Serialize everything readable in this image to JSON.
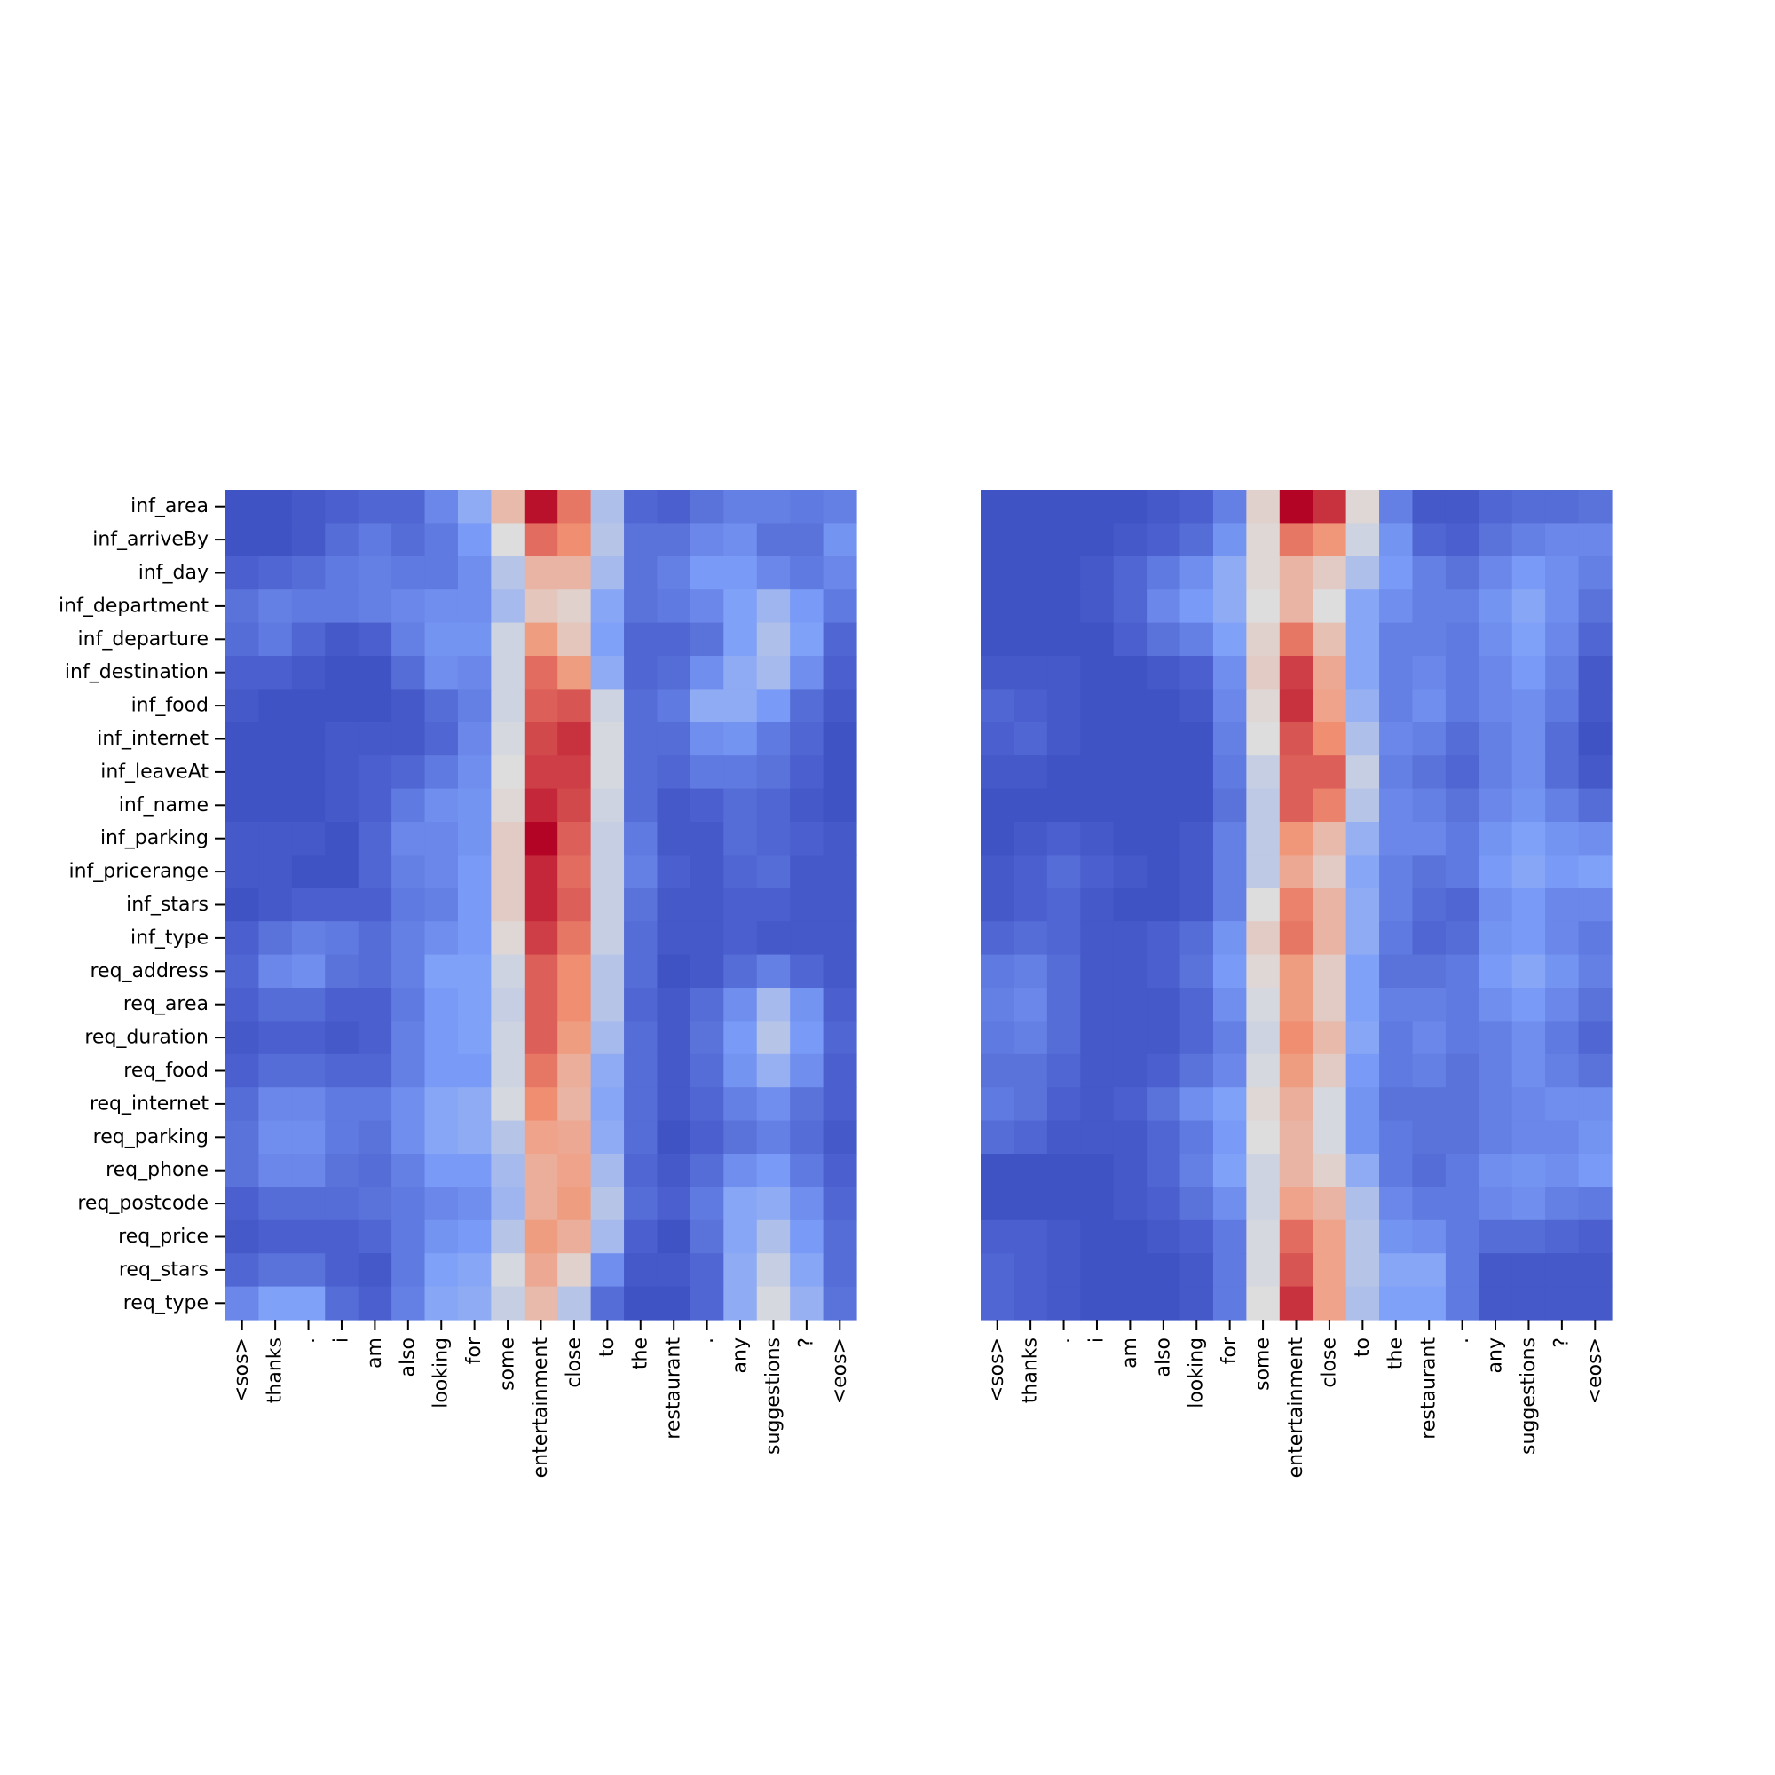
{
  "chart_data": [
    {
      "type": "heatmap",
      "title": "",
      "xlabel": "",
      "ylabel": "",
      "colormap": "coolwarm",
      "value_range": [
        0,
        1
      ],
      "x": [
        "<sos>",
        "thanks",
        ".",
        "i",
        "am",
        "also",
        "looking",
        "for",
        "some",
        "entertainment",
        "close",
        "to",
        "the",
        "restaurant",
        ".",
        "any",
        "suggestions",
        "?",
        "<eos>"
      ],
      "y": [
        "inf_area",
        "inf_arriveBy",
        "inf_day",
        "inf_department",
        "inf_departure",
        "inf_destination",
        "inf_food",
        "inf_internet",
        "inf_leaveAt",
        "inf_name",
        "inf_parking",
        "inf_pricerange",
        "inf_stars",
        "inf_type",
        "req_address",
        "req_area",
        "req_duration",
        "req_food",
        "req_internet",
        "req_parking",
        "req_phone",
        "req_postcode",
        "req_price",
        "req_stars",
        "req_type"
      ],
      "values": [
        [
          0.02,
          0.02,
          0.04,
          0.06,
          0.08,
          0.08,
          0.18,
          0.3,
          0.62,
          0.98,
          0.8,
          0.38,
          0.08,
          0.06,
          0.12,
          0.16,
          0.16,
          0.14,
          0.16
        ],
        [
          0.02,
          0.02,
          0.04,
          0.1,
          0.14,
          0.1,
          0.14,
          0.24,
          0.5,
          0.82,
          0.76,
          0.4,
          0.12,
          0.12,
          0.18,
          0.2,
          0.12,
          0.12,
          0.22
        ],
        [
          0.06,
          0.08,
          0.1,
          0.14,
          0.16,
          0.14,
          0.14,
          0.2,
          0.4,
          0.64,
          0.64,
          0.36,
          0.12,
          0.16,
          0.24,
          0.24,
          0.18,
          0.14,
          0.18
        ],
        [
          0.12,
          0.16,
          0.14,
          0.14,
          0.16,
          0.18,
          0.2,
          0.2,
          0.36,
          0.58,
          0.54,
          0.28,
          0.12,
          0.14,
          0.18,
          0.26,
          0.34,
          0.24,
          0.14
        ],
        [
          0.1,
          0.14,
          0.08,
          0.04,
          0.06,
          0.16,
          0.22,
          0.22,
          0.46,
          0.72,
          0.58,
          0.26,
          0.08,
          0.08,
          0.12,
          0.26,
          0.38,
          0.26,
          0.08
        ],
        [
          0.06,
          0.06,
          0.04,
          0.02,
          0.02,
          0.1,
          0.2,
          0.18,
          0.46,
          0.82,
          0.72,
          0.3,
          0.08,
          0.1,
          0.2,
          0.3,
          0.36,
          0.2,
          0.06
        ],
        [
          0.04,
          0.02,
          0.02,
          0.02,
          0.02,
          0.04,
          0.1,
          0.16,
          0.46,
          0.84,
          0.86,
          0.46,
          0.1,
          0.14,
          0.3,
          0.3,
          0.24,
          0.1,
          0.04
        ],
        [
          0.02,
          0.02,
          0.02,
          0.04,
          0.04,
          0.04,
          0.08,
          0.18,
          0.48,
          0.88,
          0.92,
          0.48,
          0.1,
          0.1,
          0.2,
          0.22,
          0.14,
          0.08,
          0.02
        ],
        [
          0.02,
          0.02,
          0.02,
          0.04,
          0.06,
          0.08,
          0.14,
          0.2,
          0.5,
          0.9,
          0.9,
          0.48,
          0.1,
          0.08,
          0.14,
          0.14,
          0.12,
          0.06,
          0.02
        ],
        [
          0.02,
          0.02,
          0.02,
          0.04,
          0.06,
          0.14,
          0.2,
          0.22,
          0.52,
          0.94,
          0.88,
          0.46,
          0.1,
          0.04,
          0.06,
          0.1,
          0.08,
          0.04,
          0.02
        ],
        [
          0.04,
          0.04,
          0.04,
          0.02,
          0.08,
          0.18,
          0.18,
          0.22,
          0.56,
          1.0,
          0.84,
          0.44,
          0.14,
          0.04,
          0.04,
          0.1,
          0.08,
          0.06,
          0.04
        ],
        [
          0.04,
          0.04,
          0.02,
          0.02,
          0.08,
          0.16,
          0.18,
          0.24,
          0.56,
          0.94,
          0.82,
          0.44,
          0.16,
          0.06,
          0.04,
          0.08,
          0.1,
          0.04,
          0.04
        ],
        [
          0.02,
          0.04,
          0.06,
          0.06,
          0.06,
          0.14,
          0.16,
          0.24,
          0.56,
          0.94,
          0.84,
          0.44,
          0.12,
          0.04,
          0.04,
          0.06,
          0.06,
          0.04,
          0.04
        ],
        [
          0.06,
          0.12,
          0.16,
          0.14,
          0.1,
          0.16,
          0.2,
          0.24,
          0.52,
          0.9,
          0.8,
          0.44,
          0.1,
          0.04,
          0.04,
          0.06,
          0.04,
          0.04,
          0.04
        ],
        [
          0.08,
          0.18,
          0.2,
          0.12,
          0.1,
          0.16,
          0.26,
          0.26,
          0.46,
          0.84,
          0.76,
          0.4,
          0.1,
          0.02,
          0.04,
          0.1,
          0.16,
          0.08,
          0.04
        ],
        [
          0.06,
          0.1,
          0.1,
          0.06,
          0.06,
          0.14,
          0.24,
          0.26,
          0.44,
          0.84,
          0.76,
          0.4,
          0.08,
          0.04,
          0.1,
          0.2,
          0.36,
          0.22,
          0.06
        ],
        [
          0.04,
          0.06,
          0.06,
          0.04,
          0.06,
          0.16,
          0.24,
          0.26,
          0.46,
          0.84,
          0.72,
          0.36,
          0.1,
          0.04,
          0.12,
          0.24,
          0.4,
          0.24,
          0.08
        ],
        [
          0.06,
          0.1,
          0.1,
          0.08,
          0.08,
          0.16,
          0.24,
          0.24,
          0.46,
          0.8,
          0.66,
          0.3,
          0.1,
          0.04,
          0.1,
          0.22,
          0.32,
          0.2,
          0.06
        ],
        [
          0.1,
          0.18,
          0.18,
          0.14,
          0.14,
          0.2,
          0.28,
          0.3,
          0.48,
          0.76,
          0.64,
          0.28,
          0.1,
          0.04,
          0.08,
          0.16,
          0.2,
          0.12,
          0.06
        ],
        [
          0.12,
          0.2,
          0.2,
          0.14,
          0.12,
          0.2,
          0.28,
          0.3,
          0.4,
          0.7,
          0.68,
          0.3,
          0.1,
          0.02,
          0.06,
          0.12,
          0.16,
          0.1,
          0.04
        ],
        [
          0.12,
          0.18,
          0.18,
          0.12,
          0.1,
          0.16,
          0.24,
          0.24,
          0.36,
          0.66,
          0.7,
          0.36,
          0.08,
          0.04,
          0.1,
          0.2,
          0.24,
          0.14,
          0.06
        ],
        [
          0.06,
          0.1,
          0.1,
          0.1,
          0.12,
          0.14,
          0.18,
          0.2,
          0.34,
          0.66,
          0.72,
          0.4,
          0.1,
          0.06,
          0.14,
          0.28,
          0.3,
          0.2,
          0.08
        ],
        [
          0.04,
          0.06,
          0.06,
          0.06,
          0.08,
          0.14,
          0.22,
          0.24,
          0.4,
          0.72,
          0.66,
          0.36,
          0.06,
          0.02,
          0.12,
          0.28,
          0.38,
          0.24,
          0.1
        ],
        [
          0.08,
          0.12,
          0.12,
          0.06,
          0.04,
          0.14,
          0.26,
          0.28,
          0.48,
          0.68,
          0.54,
          0.2,
          0.04,
          0.04,
          0.08,
          0.3,
          0.44,
          0.28,
          0.1
        ],
        [
          0.18,
          0.26,
          0.26,
          0.1,
          0.06,
          0.16,
          0.28,
          0.3,
          0.44,
          0.62,
          0.4,
          0.1,
          0.02,
          0.02,
          0.08,
          0.3,
          0.48,
          0.32,
          0.12
        ]
      ]
    },
    {
      "type": "heatmap",
      "title": "",
      "xlabel": "",
      "ylabel": "",
      "colormap": "coolwarm",
      "value_range": [
        0,
        1
      ],
      "x": [
        "<sos>",
        "thanks",
        ".",
        "i",
        "am",
        "also",
        "looking",
        "for",
        "some",
        "entertainment",
        "close",
        "to",
        "the",
        "restaurant",
        ".",
        "any",
        "suggestions",
        "?",
        "<eos>"
      ],
      "y": [
        "inf_area",
        "inf_arriveBy",
        "inf_day",
        "inf_department",
        "inf_departure",
        "inf_destination",
        "inf_food",
        "inf_internet",
        "inf_leaveAt",
        "inf_name",
        "inf_parking",
        "inf_pricerange",
        "inf_stars",
        "inf_type",
        "req_address",
        "req_area",
        "req_duration",
        "req_food",
        "req_internet",
        "req_parking",
        "req_phone",
        "req_postcode",
        "req_price",
        "req_stars",
        "req_type"
      ],
      "values": [
        [
          0.02,
          0.02,
          0.02,
          0.02,
          0.02,
          0.04,
          0.06,
          0.16,
          0.54,
          1.0,
          0.92,
          0.52,
          0.16,
          0.04,
          0.04,
          0.08,
          0.1,
          0.1,
          0.12
        ],
        [
          0.02,
          0.02,
          0.02,
          0.02,
          0.04,
          0.06,
          0.1,
          0.22,
          0.52,
          0.8,
          0.74,
          0.46,
          0.22,
          0.08,
          0.06,
          0.12,
          0.16,
          0.18,
          0.18
        ],
        [
          0.02,
          0.02,
          0.02,
          0.04,
          0.08,
          0.14,
          0.2,
          0.3,
          0.52,
          0.64,
          0.56,
          0.38,
          0.24,
          0.16,
          0.12,
          0.18,
          0.24,
          0.2,
          0.16
        ],
        [
          0.02,
          0.02,
          0.02,
          0.04,
          0.08,
          0.18,
          0.24,
          0.3,
          0.5,
          0.64,
          0.5,
          0.28,
          0.2,
          0.16,
          0.16,
          0.22,
          0.28,
          0.2,
          0.12
        ],
        [
          0.02,
          0.02,
          0.02,
          0.02,
          0.06,
          0.12,
          0.16,
          0.26,
          0.54,
          0.8,
          0.6,
          0.28,
          0.16,
          0.16,
          0.14,
          0.2,
          0.26,
          0.18,
          0.08
        ],
        [
          0.04,
          0.04,
          0.04,
          0.02,
          0.02,
          0.04,
          0.06,
          0.2,
          0.56,
          0.9,
          0.68,
          0.28,
          0.16,
          0.18,
          0.14,
          0.18,
          0.24,
          0.16,
          0.04
        ],
        [
          0.08,
          0.06,
          0.04,
          0.02,
          0.02,
          0.02,
          0.04,
          0.18,
          0.52,
          0.92,
          0.7,
          0.32,
          0.16,
          0.2,
          0.14,
          0.18,
          0.2,
          0.14,
          0.04
        ],
        [
          0.06,
          0.08,
          0.04,
          0.02,
          0.02,
          0.02,
          0.02,
          0.16,
          0.5,
          0.86,
          0.76,
          0.38,
          0.18,
          0.16,
          0.1,
          0.16,
          0.2,
          0.1,
          0.02
        ],
        [
          0.04,
          0.04,
          0.02,
          0.02,
          0.02,
          0.02,
          0.02,
          0.14,
          0.44,
          0.84,
          0.84,
          0.44,
          0.16,
          0.12,
          0.08,
          0.16,
          0.2,
          0.1,
          0.04
        ],
        [
          0.02,
          0.02,
          0.02,
          0.02,
          0.02,
          0.02,
          0.02,
          0.12,
          0.42,
          0.84,
          0.78,
          0.4,
          0.18,
          0.16,
          0.12,
          0.18,
          0.22,
          0.16,
          0.1
        ],
        [
          0.02,
          0.04,
          0.06,
          0.04,
          0.02,
          0.02,
          0.04,
          0.16,
          0.42,
          0.74,
          0.62,
          0.32,
          0.18,
          0.18,
          0.14,
          0.22,
          0.26,
          0.22,
          0.2
        ],
        [
          0.04,
          0.06,
          0.1,
          0.06,
          0.04,
          0.02,
          0.04,
          0.16,
          0.42,
          0.68,
          0.56,
          0.28,
          0.16,
          0.12,
          0.14,
          0.24,
          0.28,
          0.24,
          0.26
        ],
        [
          0.04,
          0.06,
          0.08,
          0.04,
          0.02,
          0.02,
          0.04,
          0.16,
          0.5,
          0.78,
          0.64,
          0.3,
          0.16,
          0.1,
          0.08,
          0.2,
          0.24,
          0.18,
          0.18
        ],
        [
          0.08,
          0.1,
          0.08,
          0.04,
          0.04,
          0.06,
          0.1,
          0.22,
          0.56,
          0.8,
          0.64,
          0.3,
          0.14,
          0.08,
          0.1,
          0.22,
          0.24,
          0.18,
          0.14
        ],
        [
          0.14,
          0.16,
          0.1,
          0.04,
          0.04,
          0.06,
          0.12,
          0.24,
          0.52,
          0.72,
          0.56,
          0.26,
          0.12,
          0.12,
          0.14,
          0.24,
          0.28,
          0.22,
          0.16
        ],
        [
          0.16,
          0.18,
          0.1,
          0.04,
          0.04,
          0.04,
          0.08,
          0.2,
          0.48,
          0.72,
          0.56,
          0.26,
          0.16,
          0.16,
          0.14,
          0.2,
          0.24,
          0.18,
          0.12
        ],
        [
          0.14,
          0.16,
          0.1,
          0.04,
          0.04,
          0.04,
          0.08,
          0.16,
          0.46,
          0.76,
          0.62,
          0.28,
          0.14,
          0.18,
          0.14,
          0.16,
          0.2,
          0.14,
          0.08
        ],
        [
          0.12,
          0.12,
          0.08,
          0.04,
          0.04,
          0.06,
          0.12,
          0.18,
          0.48,
          0.72,
          0.56,
          0.24,
          0.14,
          0.16,
          0.12,
          0.16,
          0.2,
          0.16,
          0.12
        ],
        [
          0.14,
          0.12,
          0.06,
          0.04,
          0.06,
          0.12,
          0.2,
          0.26,
          0.52,
          0.66,
          0.48,
          0.22,
          0.12,
          0.12,
          0.12,
          0.16,
          0.18,
          0.2,
          0.2
        ],
        [
          0.1,
          0.08,
          0.04,
          0.04,
          0.04,
          0.08,
          0.14,
          0.24,
          0.5,
          0.64,
          0.48,
          0.22,
          0.14,
          0.12,
          0.12,
          0.16,
          0.18,
          0.18,
          0.22
        ],
        [
          0.02,
          0.02,
          0.02,
          0.02,
          0.04,
          0.08,
          0.16,
          0.26,
          0.46,
          0.64,
          0.54,
          0.3,
          0.14,
          0.1,
          0.14,
          0.2,
          0.22,
          0.2,
          0.24
        ],
        [
          0.02,
          0.02,
          0.02,
          0.02,
          0.04,
          0.06,
          0.12,
          0.2,
          0.46,
          0.7,
          0.64,
          0.38,
          0.18,
          0.14,
          0.14,
          0.18,
          0.2,
          0.16,
          0.14
        ],
        [
          0.06,
          0.06,
          0.04,
          0.02,
          0.02,
          0.04,
          0.06,
          0.14,
          0.48,
          0.82,
          0.7,
          0.4,
          0.22,
          0.2,
          0.14,
          0.1,
          0.1,
          0.08,
          0.06
        ],
        [
          0.08,
          0.06,
          0.04,
          0.02,
          0.02,
          0.02,
          0.04,
          0.14,
          0.48,
          0.86,
          0.7,
          0.4,
          0.28,
          0.28,
          0.14,
          0.04,
          0.04,
          0.04,
          0.04
        ],
        [
          0.08,
          0.06,
          0.04,
          0.02,
          0.02,
          0.02,
          0.04,
          0.14,
          0.5,
          0.92,
          0.7,
          0.38,
          0.26,
          0.26,
          0.14,
          0.04,
          0.04,
          0.04,
          0.04
        ]
      ]
    }
  ]
}
